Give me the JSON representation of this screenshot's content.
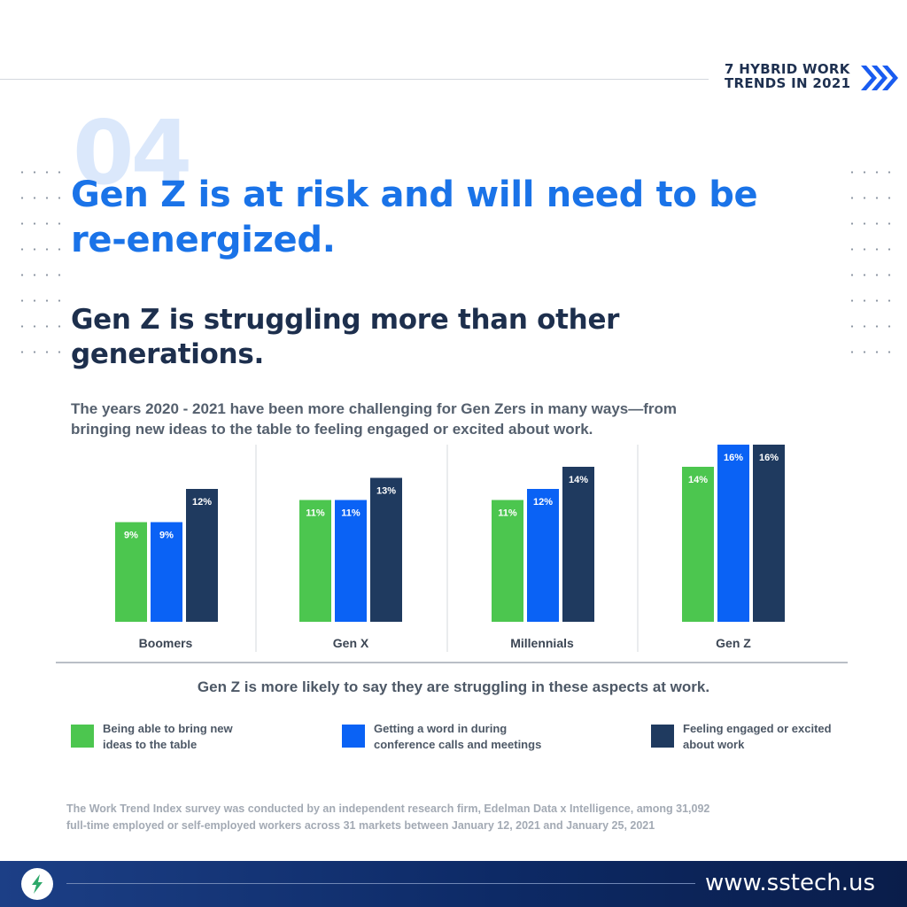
{
  "header": {
    "trend_line1": "7 HYBRID WORK",
    "trend_line2": "TRENDS IN 2021",
    "number": "04"
  },
  "headline": {
    "line1": "Gen Z is at risk and will need to be",
    "line2": "re-energized."
  },
  "subhead": {
    "line1": "Gen Z is struggling more than other",
    "line2": "generations."
  },
  "description": {
    "line1": "The years 2020 - 2021 have been more challenging for Gen Zers in many ways—from",
    "line2": "bringing new ideas to the table to feeling engaged or excited about work."
  },
  "chart_data": {
    "type": "bar",
    "categories": [
      "Boomers",
      "Gen X",
      "Millennials",
      "Gen Z"
    ],
    "series": [
      {
        "name": "Being able to bring new ideas to the table",
        "values": [
          9,
          11,
          11,
          14
        ],
        "color": "#4cc64f"
      },
      {
        "name": "Getting a word in during conference calls and meetings",
        "values": [
          9,
          11,
          12,
          16
        ],
        "color": "#0a62f5"
      },
      {
        "name": "Feeling engaged or excited about work",
        "values": [
          12,
          13,
          14,
          16
        ],
        "color": "#1f3a5f"
      }
    ],
    "value_suffix": "%",
    "ylim": [
      0,
      16
    ],
    "grid": false,
    "legend_position": "bottom",
    "caption": "Gen Z is more likely to say they are struggling in these aspects at work."
  },
  "legend": [
    {
      "line1": "Being able to bring new",
      "line2": "ideas to the table",
      "color": "#4cc64f"
    },
    {
      "line1": "Getting a word in during",
      "line2": "conference calls and meetings",
      "color": "#0a62f5"
    },
    {
      "line1": "Feeling engaged or excited",
      "line2": "about work",
      "color": "#1f3a5f"
    }
  ],
  "footnote": {
    "line1": "The Work Trend Index survey was conducted by an independent research firm, Edelman Data x Intelligence, among 31,092",
    "line2": "full-time employed or self-employed workers across 31 markets between January 12, 2021 and January 25, 2021"
  },
  "footer": {
    "website": "www.sstech.us",
    "logo_icon": "sstech-logo-icon"
  },
  "colors": {
    "accent_blue": "#1a73e8",
    "navy": "#1d2f4d",
    "green": "#4cc64f",
    "blue": "#0a62f5",
    "dark_navy": "#1f3a5f"
  }
}
